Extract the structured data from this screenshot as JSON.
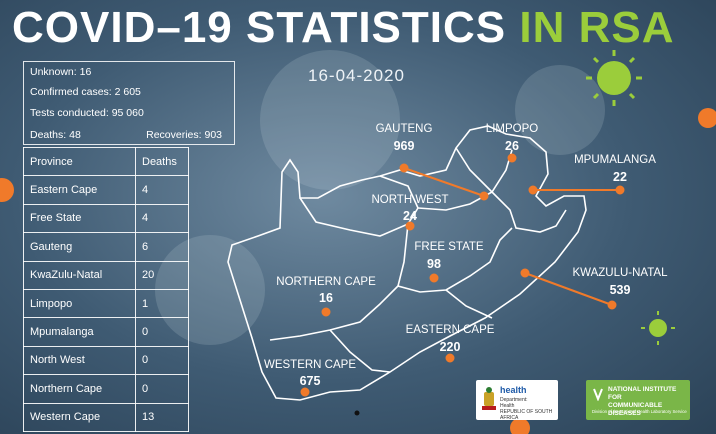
{
  "title": {
    "main": "COVID–19 STATISTICS ",
    "accent": "IN RSA"
  },
  "date": "16-04-2020",
  "summary": {
    "unknown": "Unknown: 16",
    "confirmed": "Confirmed cases: 2 605",
    "tests": "Tests conducted: 95 060",
    "deaths": "Deaths: 48",
    "recoveries": "Recoveries: 903"
  },
  "deaths_table": {
    "headers": [
      "Province",
      "Deaths"
    ],
    "rows": [
      [
        "Eastern Cape",
        "4"
      ],
      [
        "Free State",
        "4"
      ],
      [
        "Gauteng",
        "6"
      ],
      [
        "KwaZulu-Natal",
        "20"
      ],
      [
        "Limpopo",
        "1"
      ],
      [
        "Mpumalanga",
        "0"
      ],
      [
        "North West",
        "0"
      ],
      [
        "Northern Cape",
        "0"
      ],
      [
        "Western Cape",
        "13"
      ]
    ]
  },
  "provinces": {
    "gauteng": {
      "name": "GAUTENG",
      "cases": "969"
    },
    "limpopo": {
      "name": "LIMPOPO",
      "cases": "26"
    },
    "mpumalanga": {
      "name": "MPUMALANGA",
      "cases": "22"
    },
    "north_west": {
      "name": "NORTH WEST",
      "cases": "24"
    },
    "free_state": {
      "name": "FREE STATE",
      "cases": "98"
    },
    "kwazulu_natal": {
      "name": "KWAZULU-NATAL",
      "cases": "539"
    },
    "northern_cape": {
      "name": "NORTHERN CAPE",
      "cases": "16"
    },
    "eastern_cape": {
      "name": "EASTERN CAPE",
      "cases": "220"
    },
    "western_cape": {
      "name": "WESTERN CAPE",
      "cases": "675"
    }
  },
  "logos": {
    "health": {
      "title": "health",
      "line1": "Department:",
      "line2": "Health",
      "line3": "REPUBLIC OF SOUTH AFRICA"
    },
    "nicd": {
      "line1": "NATIONAL INSTITUTE FOR",
      "line2": "COMMUNICABLE DISEASES",
      "line3": "Division of the National Health Laboratory Service"
    }
  },
  "colors": {
    "accent": "#9bcd3b",
    "marker": "#f07a2a",
    "background": "#3f5b73"
  }
}
